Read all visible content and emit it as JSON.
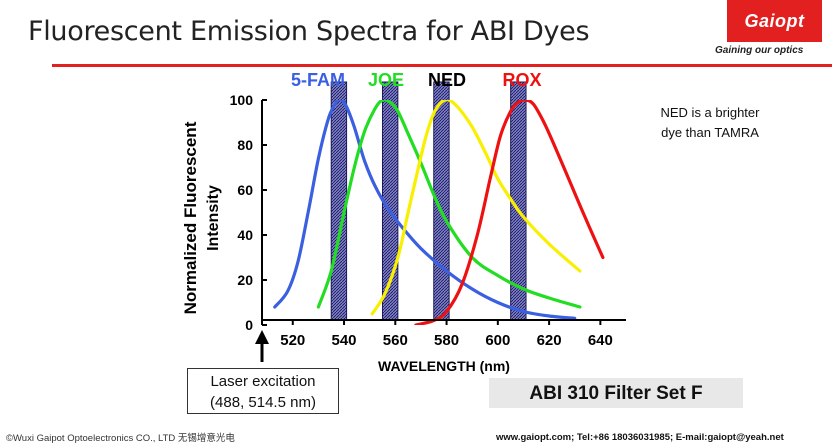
{
  "header": {
    "title": "Fluorescent Emission Spectra for ABI Dyes",
    "logo_text": "Gaiopt",
    "tagline": "Gaining our optics"
  },
  "chart_data": {
    "type": "line",
    "title": "Fluorescent Emission Spectra for ABI Dyes",
    "xlabel": "WAVELENGTH (nm)",
    "ylabel_line1": "Normalized Fluorescent",
    "ylabel_line2": "Intensity",
    "xlim": [
      508,
      650
    ],
    "ylim": [
      0,
      100
    ],
    "x_ticks": [
      520,
      540,
      560,
      580,
      600,
      620,
      640
    ],
    "y_ticks": [
      0,
      20,
      40,
      60,
      80,
      100
    ],
    "filters": [
      {
        "name": "5-FAM",
        "range": [
          535,
          541
        ]
      },
      {
        "name": "JOE",
        "range": [
          555,
          561
        ]
      },
      {
        "name": "NED",
        "range": [
          575,
          581
        ]
      },
      {
        "name": "ROX",
        "range": [
          605,
          611
        ]
      }
    ],
    "series": [
      {
        "name": "5-FAM",
        "color": "#3a5fe0",
        "x": [
          513,
          518,
          522,
          526,
          530,
          534,
          537,
          539,
          541,
          544,
          548,
          552,
          557,
          563,
          570,
          580,
          590,
          600,
          610,
          620,
          630
        ],
        "y": [
          8,
          15,
          28,
          50,
          74,
          92,
          99,
          100,
          97,
          88,
          73,
          62,
          52,
          43,
          34,
          24,
          16,
          10,
          6,
          4,
          3
        ]
      },
      {
        "name": "JOE",
        "color": "#22dd22",
        "x": [
          530,
          535,
          540,
          544,
          548,
          552,
          555,
          558,
          561,
          565,
          570,
          575,
          580,
          590,
          600,
          610,
          620,
          632
        ],
        "y": [
          8,
          24,
          50,
          70,
          86,
          96,
          100,
          99,
          95,
          85,
          72,
          58,
          46,
          30,
          22,
          16,
          12,
          8
        ]
      },
      {
        "name": "NED",
        "color": "#f8f000",
        "x": [
          551,
          556,
          561,
          565,
          569,
          572,
          575,
          578,
          581,
          585,
          590,
          595,
          600,
          605,
          610,
          620,
          632
        ],
        "y": [
          5,
          14,
          30,
          50,
          70,
          84,
          94,
          99,
          100,
          96,
          88,
          77,
          65,
          56,
          48,
          36,
          24
        ]
      },
      {
        "name": "ROX",
        "color": "#ee1111",
        "x": [
          568,
          575,
          580,
          586,
          592,
          597,
          601,
          605,
          608,
          611,
          614,
          618,
          622,
          628,
          634,
          641
        ],
        "y": [
          0,
          2,
          6,
          18,
          40,
          65,
          84,
          95,
          99,
          100,
          98,
          90,
          80,
          64,
          48,
          30
        ]
      }
    ]
  },
  "annotations": {
    "note_line1": "NED is a brighter",
    "note_line2": "dye than TAMRA",
    "laser_line1": "Laser excitation",
    "laser_line2": "(488, 514.5 nm)",
    "filter_set": "ABI 310 Filter Set F"
  },
  "footer": {
    "copyright": "©Wuxi Gaipot Optoelectronics CO., LTD 无锡增意光电",
    "contact": "www.gaiopt.com; Tel:+86 18036031985; E-mail:gaiopt@yeah.net"
  },
  "colors": {
    "accent": "#e32020",
    "filter_fill": "#8080c8",
    "filter_hatch": "#1a1a5a"
  }
}
